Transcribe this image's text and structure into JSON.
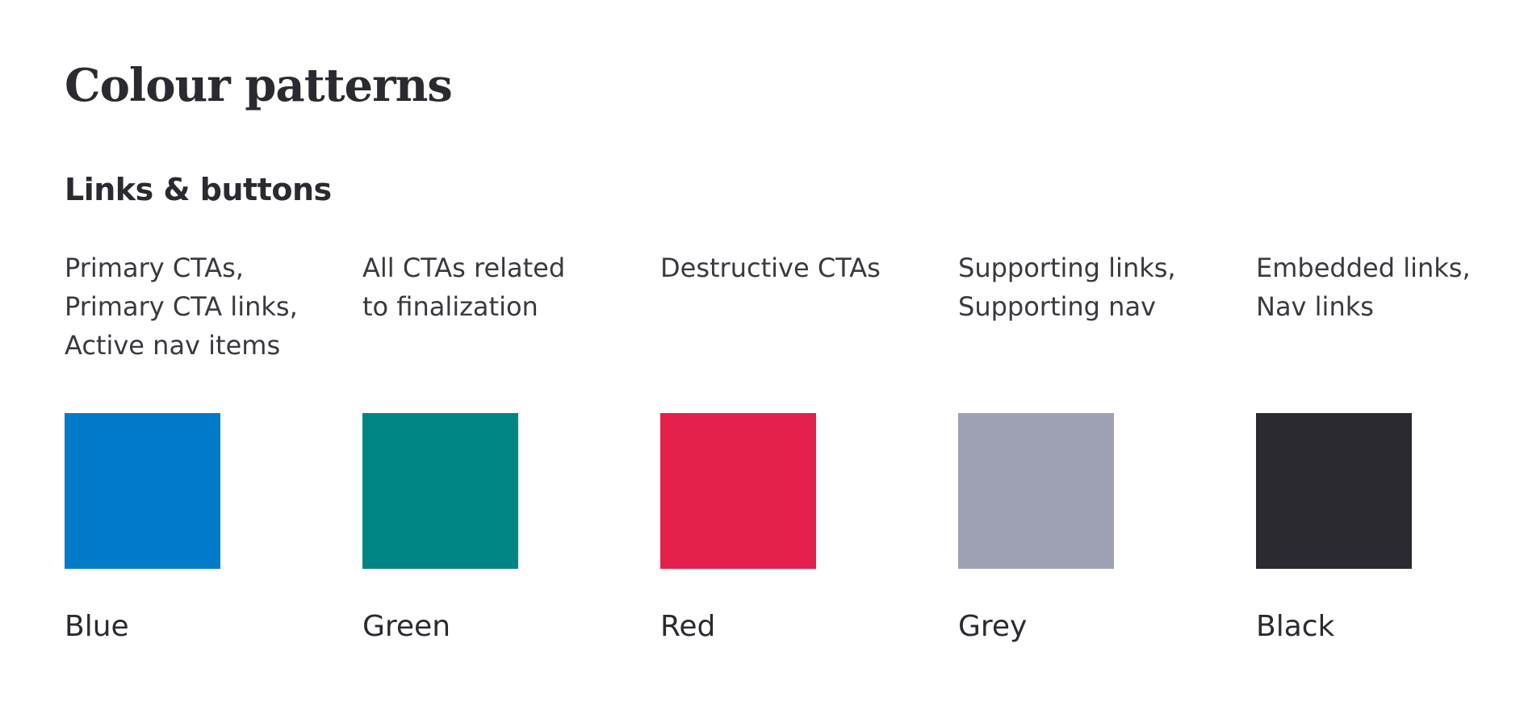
{
  "page": {
    "title": "Colour patterns"
  },
  "section": {
    "title": "Links & buttons"
  },
  "swatches": [
    {
      "description": "Primary CTAs,\nPrimary CTA links,\nActive nav items",
      "name": "Blue",
      "color": "#007bc9"
    },
    {
      "description": "All CTAs related\nto finalization",
      "name": "Green",
      "color": "#008585"
    },
    {
      "description": "Destructive CTAs",
      "name": "Red",
      "color": "#e4214b"
    },
    {
      "description": "Supporting links,\nSupporting nav",
      "name": "Grey",
      "color": "#9ea0b3"
    },
    {
      "description": "Embedded links,\nNav links",
      "name": "Black",
      "color": "#2b2a30"
    }
  ]
}
